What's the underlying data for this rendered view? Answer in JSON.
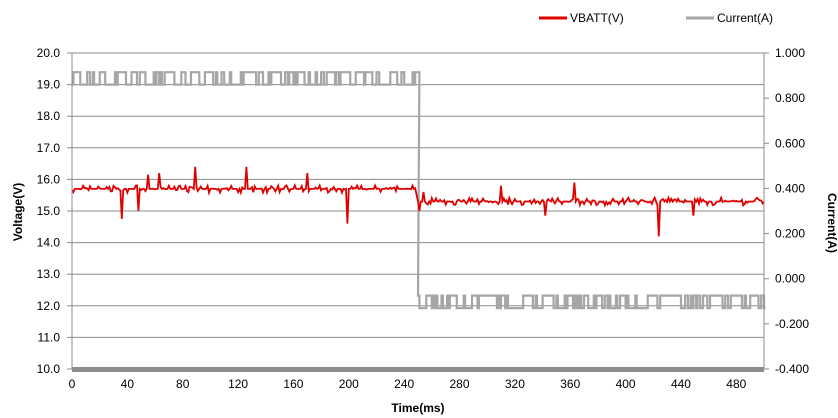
{
  "chart_data": {
    "type": "line",
    "title": "",
    "xlabel": "Time(ms)",
    "ylabel": "Voltage(V)",
    "y2label": "Current(A)",
    "xlim": [
      0,
      500
    ],
    "ylim": [
      10.0,
      20.0
    ],
    "y2lim": [
      -0.4,
      1.0
    ],
    "x_ticks": [
      "0",
      "40",
      "80",
      "120",
      "160",
      "200",
      "240",
      "280",
      "320",
      "360",
      "400",
      "440",
      "480"
    ],
    "y_ticks": [
      "10.0",
      "11.0",
      "12.0",
      "13.0",
      "14.0",
      "15.0",
      "16.0",
      "17.0",
      "18.0",
      "19.0",
      "20.0"
    ],
    "y2_ticks": [
      "-0.400",
      "-0.200",
      "0.000",
      "0.200",
      "0.400",
      "0.600",
      "0.800",
      "1.000"
    ],
    "grid": "horizontal",
    "legend_position": "top-right",
    "series": [
      {
        "name": "VBATT(V)",
        "axis": "left",
        "color": "#e00000",
        "segments": [
          {
            "x_start": 0,
            "x_end": 248,
            "level": 15.7,
            "noise": 0.12
          },
          {
            "x_start": 250,
            "x_end": 500,
            "level": 15.3,
            "noise": 0.12
          }
        ],
        "dips": [
          [
            36,
            14.75
          ],
          [
            48,
            15.0
          ],
          [
            199,
            14.6
          ],
          [
            251,
            15.0
          ],
          [
            342,
            14.85
          ],
          [
            424,
            14.2
          ],
          [
            449,
            14.85
          ]
        ],
        "peaks": [
          [
            55,
            16.15
          ],
          [
            63,
            16.2
          ],
          [
            89,
            16.4
          ],
          [
            126,
            16.4
          ],
          [
            170,
            16.2
          ],
          [
            363,
            15.9
          ],
          [
            254,
            15.6
          ],
          [
            310,
            15.8
          ]
        ]
      },
      {
        "name": "Current(A)",
        "axis": "right",
        "color": "#a6a6a6",
        "segments": [
          {
            "x_start": 0,
            "x_end": 250,
            "high": 0.915,
            "low": 0.86
          },
          {
            "x_start": 250,
            "x_end": 500,
            "high": -0.075,
            "low": -0.13
          }
        ],
        "step_at": 250
      }
    ]
  }
}
